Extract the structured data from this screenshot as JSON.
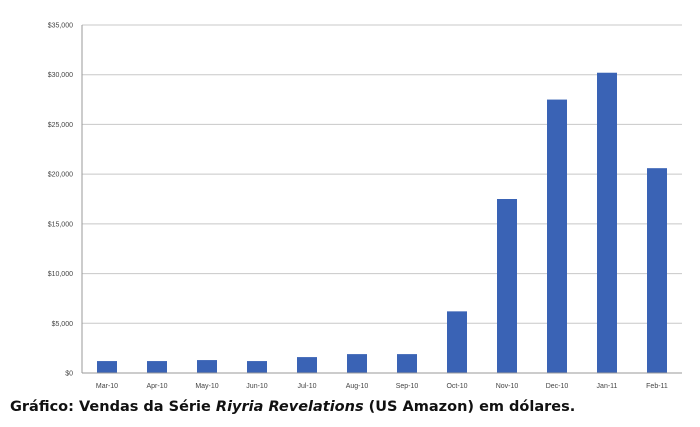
{
  "chart_data": {
    "type": "bar",
    "categories": [
      "Mar-10",
      "Apr-10",
      "May-10",
      "Jun-10",
      "Jul-10",
      "Aug-10",
      "Sep-10",
      "Oct-10",
      "Nov-10",
      "Dec-10",
      "Jan-11",
      "Feb-11"
    ],
    "values": [
      1200,
      1200,
      1300,
      1200,
      1600,
      1900,
      1900,
      6200,
      17500,
      27500,
      30200,
      20600
    ],
    "yticks": [
      "$0",
      "$5,000",
      "$10,000",
      "$15,000",
      "$20,000",
      "$25,000",
      "$30,000",
      "$35,000"
    ],
    "ylim": [
      0,
      35000
    ],
    "grid": true,
    "legend": "none",
    "title": "",
    "xlabel": "",
    "ylabel": "",
    "bar_color": "#3a63b5"
  },
  "caption": {
    "prefix": "Gráfico: Vendas da Série ",
    "series_name": "Riyria Revelations",
    "suffix": " (US Amazon) em dólares."
  }
}
